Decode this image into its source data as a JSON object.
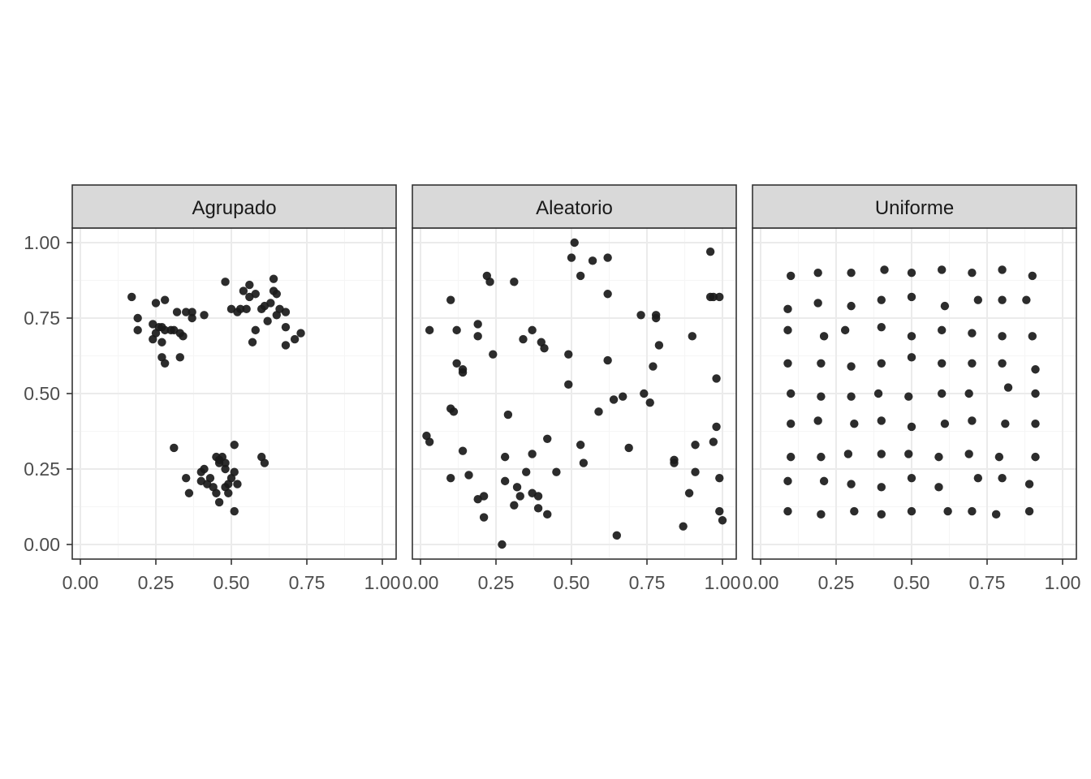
{
  "chart_data": [
    {
      "type": "scatter",
      "panel": "Agrupado",
      "xlim": [
        0,
        1
      ],
      "ylim": [
        0,
        1
      ],
      "x_ticks": [
        "0.00",
        "0.25",
        "0.50",
        "0.75",
        "1.00"
      ],
      "y_ticks": [
        "0.00",
        "0.25",
        "0.50",
        "0.75",
        "1.00"
      ],
      "grid": true,
      "points": [
        [
          0.17,
          0.82
        ],
        [
          0.19,
          0.75
        ],
        [
          0.19,
          0.71
        ],
        [
          0.24,
          0.68
        ],
        [
          0.24,
          0.73
        ],
        [
          0.25,
          0.8
        ],
        [
          0.25,
          0.7
        ],
        [
          0.26,
          0.72
        ],
        [
          0.27,
          0.62
        ],
        [
          0.27,
          0.67
        ],
        [
          0.27,
          0.72
        ],
        [
          0.28,
          0.81
        ],
        [
          0.28,
          0.6
        ],
        [
          0.28,
          0.71
        ],
        [
          0.3,
          0.71
        ],
        [
          0.31,
          0.71
        ],
        [
          0.32,
          0.77
        ],
        [
          0.33,
          0.62
        ],
        [
          0.33,
          0.7
        ],
        [
          0.34,
          0.69
        ],
        [
          0.35,
          0.77
        ],
        [
          0.37,
          0.75
        ],
        [
          0.37,
          0.77
        ],
        [
          0.41,
          0.76
        ],
        [
          0.48,
          0.87
        ],
        [
          0.5,
          0.78
        ],
        [
          0.52,
          0.77
        ],
        [
          0.53,
          0.78
        ],
        [
          0.54,
          0.84
        ],
        [
          0.55,
          0.78
        ],
        [
          0.56,
          0.86
        ],
        [
          0.56,
          0.82
        ],
        [
          0.57,
          0.67
        ],
        [
          0.58,
          0.71
        ],
        [
          0.58,
          0.83
        ],
        [
          0.6,
          0.78
        ],
        [
          0.61,
          0.79
        ],
        [
          0.62,
          0.74
        ],
        [
          0.63,
          0.8
        ],
        [
          0.64,
          0.88
        ],
        [
          0.64,
          0.84
        ],
        [
          0.65,
          0.83
        ],
        [
          0.65,
          0.76
        ],
        [
          0.66,
          0.78
        ],
        [
          0.68,
          0.72
        ],
        [
          0.68,
          0.66
        ],
        [
          0.68,
          0.77
        ],
        [
          0.71,
          0.68
        ],
        [
          0.73,
          0.7
        ],
        [
          0.31,
          0.32
        ],
        [
          0.35,
          0.22
        ],
        [
          0.36,
          0.17
        ],
        [
          0.4,
          0.21
        ],
        [
          0.4,
          0.24
        ],
        [
          0.41,
          0.25
        ],
        [
          0.42,
          0.2
        ],
        [
          0.43,
          0.22
        ],
        [
          0.44,
          0.19
        ],
        [
          0.45,
          0.17
        ],
        [
          0.45,
          0.29
        ],
        [
          0.46,
          0.28
        ],
        [
          0.46,
          0.14
        ],
        [
          0.46,
          0.27
        ],
        [
          0.47,
          0.29
        ],
        [
          0.48,
          0.27
        ],
        [
          0.48,
          0.25
        ],
        [
          0.48,
          0.19
        ],
        [
          0.49,
          0.17
        ],
        [
          0.49,
          0.2
        ],
        [
          0.5,
          0.22
        ],
        [
          0.51,
          0.24
        ],
        [
          0.51,
          0.11
        ],
        [
          0.51,
          0.33
        ],
        [
          0.52,
          0.2
        ],
        [
          0.6,
          0.29
        ],
        [
          0.61,
          0.27
        ]
      ]
    },
    {
      "type": "scatter",
      "panel": "Aleatorio",
      "xlim": [
        0,
        1
      ],
      "ylim": [
        0,
        1
      ],
      "x_ticks": [
        "0.00",
        "0.25",
        "0.50",
        "0.75",
        "1.00"
      ],
      "grid": true,
      "points": [
        [
          0.02,
          0.36
        ],
        [
          0.03,
          0.34
        ],
        [
          0.03,
          0.71
        ],
        [
          0.1,
          0.81
        ],
        [
          0.1,
          0.45
        ],
        [
          0.1,
          0.22
        ],
        [
          0.11,
          0.44
        ],
        [
          0.12,
          0.71
        ],
        [
          0.12,
          0.6
        ],
        [
          0.14,
          0.58
        ],
        [
          0.14,
          0.57
        ],
        [
          0.14,
          0.31
        ],
        [
          0.16,
          0.23
        ],
        [
          0.19,
          0.69
        ],
        [
          0.19,
          0.73
        ],
        [
          0.19,
          0.15
        ],
        [
          0.21,
          0.16
        ],
        [
          0.21,
          0.09
        ],
        [
          0.22,
          0.89
        ],
        [
          0.23,
          0.87
        ],
        [
          0.24,
          0.63
        ],
        [
          0.27,
          0.0
        ],
        [
          0.28,
          0.29
        ],
        [
          0.28,
          0.21
        ],
        [
          0.29,
          0.43
        ],
        [
          0.31,
          0.87
        ],
        [
          0.31,
          0.13
        ],
        [
          0.32,
          0.19
        ],
        [
          0.33,
          0.16
        ],
        [
          0.34,
          0.68
        ],
        [
          0.35,
          0.24
        ],
        [
          0.37,
          0.71
        ],
        [
          0.37,
          0.3
        ],
        [
          0.37,
          0.17
        ],
        [
          0.39,
          0.16
        ],
        [
          0.39,
          0.12
        ],
        [
          0.4,
          0.67
        ],
        [
          0.41,
          0.65
        ],
        [
          0.42,
          0.1
        ],
        [
          0.42,
          0.35
        ],
        [
          0.45,
          0.24
        ],
        [
          0.49,
          0.53
        ],
        [
          0.49,
          0.63
        ],
        [
          0.5,
          0.95
        ],
        [
          0.51,
          1.0
        ],
        [
          0.53,
          0.33
        ],
        [
          0.53,
          0.89
        ],
        [
          0.54,
          0.27
        ],
        [
          0.57,
          0.94
        ],
        [
          0.59,
          0.44
        ],
        [
          0.62,
          0.95
        ],
        [
          0.62,
          0.83
        ],
        [
          0.62,
          0.61
        ],
        [
          0.64,
          0.48
        ],
        [
          0.65,
          0.03
        ],
        [
          0.67,
          0.49
        ],
        [
          0.69,
          0.32
        ],
        [
          0.73,
          0.76
        ],
        [
          0.74,
          0.5
        ],
        [
          0.76,
          0.47
        ],
        [
          0.77,
          0.59
        ],
        [
          0.78,
          0.75
        ],
        [
          0.78,
          0.76
        ],
        [
          0.79,
          0.66
        ],
        [
          0.84,
          0.28
        ],
        [
          0.84,
          0.27
        ],
        [
          0.87,
          0.06
        ],
        [
          0.89,
          0.17
        ],
        [
          0.9,
          0.69
        ],
        [
          0.91,
          0.33
        ],
        [
          0.91,
          0.24
        ],
        [
          0.96,
          0.97
        ],
        [
          0.96,
          0.82
        ],
        [
          0.97,
          0.34
        ],
        [
          0.97,
          0.82
        ],
        [
          0.98,
          0.55
        ],
        [
          0.98,
          0.39
        ],
        [
          0.99,
          0.11
        ],
        [
          0.99,
          0.22
        ],
        [
          0.99,
          0.82
        ],
        [
          1.0,
          0.08
        ]
      ]
    },
    {
      "type": "scatter",
      "panel": "Uniforme",
      "xlim": [
        0,
        1
      ],
      "ylim": [
        0,
        1
      ],
      "x_ticks": [
        "0.00",
        "0.25",
        "0.50",
        "0.75",
        "1.00"
      ],
      "grid": true,
      "points": [
        [
          0.1,
          0.89
        ],
        [
          0.19,
          0.9
        ],
        [
          0.3,
          0.9
        ],
        [
          0.41,
          0.91
        ],
        [
          0.5,
          0.9
        ],
        [
          0.6,
          0.91
        ],
        [
          0.7,
          0.9
        ],
        [
          0.8,
          0.91
        ],
        [
          0.9,
          0.89
        ],
        [
          0.09,
          0.78
        ],
        [
          0.19,
          0.8
        ],
        [
          0.3,
          0.79
        ],
        [
          0.4,
          0.81
        ],
        [
          0.5,
          0.82
        ],
        [
          0.61,
          0.79
        ],
        [
          0.72,
          0.81
        ],
        [
          0.8,
          0.81
        ],
        [
          0.88,
          0.81
        ],
        [
          0.09,
          0.71
        ],
        [
          0.21,
          0.69
        ],
        [
          0.28,
          0.71
        ],
        [
          0.4,
          0.72
        ],
        [
          0.5,
          0.69
        ],
        [
          0.6,
          0.71
        ],
        [
          0.7,
          0.7
        ],
        [
          0.8,
          0.69
        ],
        [
          0.9,
          0.69
        ],
        [
          0.09,
          0.6
        ],
        [
          0.2,
          0.6
        ],
        [
          0.3,
          0.59
        ],
        [
          0.4,
          0.6
        ],
        [
          0.5,
          0.62
        ],
        [
          0.6,
          0.6
        ],
        [
          0.7,
          0.6
        ],
        [
          0.8,
          0.6
        ],
        [
          0.91,
          0.58
        ],
        [
          0.1,
          0.5
        ],
        [
          0.2,
          0.49
        ],
        [
          0.3,
          0.49
        ],
        [
          0.39,
          0.5
        ],
        [
          0.49,
          0.49
        ],
        [
          0.6,
          0.5
        ],
        [
          0.69,
          0.5
        ],
        [
          0.82,
          0.52
        ],
        [
          0.91,
          0.5
        ],
        [
          0.1,
          0.4
        ],
        [
          0.19,
          0.41
        ],
        [
          0.31,
          0.4
        ],
        [
          0.4,
          0.41
        ],
        [
          0.5,
          0.39
        ],
        [
          0.61,
          0.4
        ],
        [
          0.7,
          0.41
        ],
        [
          0.81,
          0.4
        ],
        [
          0.91,
          0.4
        ],
        [
          0.1,
          0.29
        ],
        [
          0.2,
          0.29
        ],
        [
          0.29,
          0.3
        ],
        [
          0.4,
          0.3
        ],
        [
          0.49,
          0.3
        ],
        [
          0.59,
          0.29
        ],
        [
          0.69,
          0.3
        ],
        [
          0.79,
          0.29
        ],
        [
          0.91,
          0.29
        ],
        [
          0.09,
          0.21
        ],
        [
          0.21,
          0.21
        ],
        [
          0.3,
          0.2
        ],
        [
          0.4,
          0.19
        ],
        [
          0.5,
          0.22
        ],
        [
          0.59,
          0.19
        ],
        [
          0.72,
          0.22
        ],
        [
          0.8,
          0.22
        ],
        [
          0.89,
          0.2
        ],
        [
          0.09,
          0.11
        ],
        [
          0.2,
          0.1
        ],
        [
          0.31,
          0.11
        ],
        [
          0.4,
          0.1
        ],
        [
          0.5,
          0.11
        ],
        [
          0.62,
          0.11
        ],
        [
          0.7,
          0.11
        ],
        [
          0.78,
          0.1
        ],
        [
          0.89,
          0.11
        ]
      ]
    }
  ],
  "colors": {
    "point": "#1a1a1a",
    "strip_fill": "#d9d9d9",
    "panel_border": "#333333",
    "grid_major": "#ebebeb",
    "grid_minor": "#f5f5f5",
    "tick_text": "#4d4d4d"
  }
}
